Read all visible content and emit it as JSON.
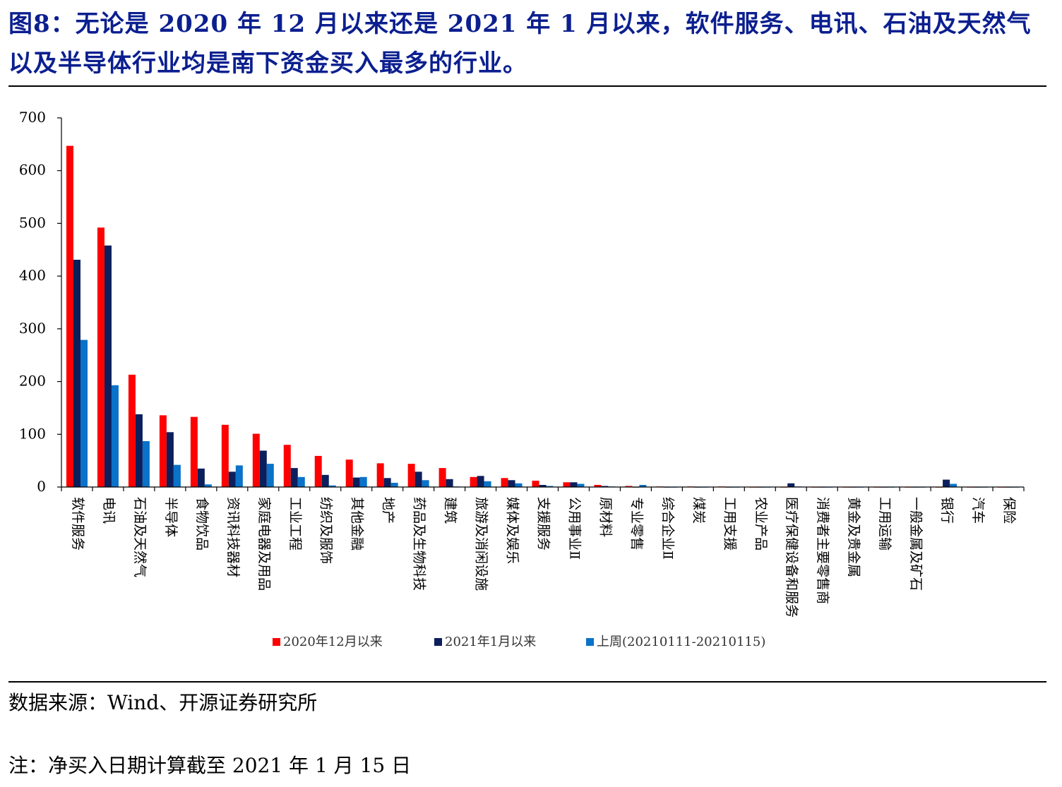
{
  "title": "图8：无论是 2020 年 12 月以来还是 2021 年 1 月以来，软件服务、电讯、石油及天然气以及半导体行业均是南下资金买入最多的行业。",
  "source": "数据来源：Wind、开源证券研究所",
  "note": "注：净买入日期计算截至 2021 年 1 月 15 日",
  "chart_data": {
    "type": "bar",
    "ylim": [
      0,
      700
    ],
    "yticks": [
      0,
      100,
      200,
      300,
      400,
      500,
      600,
      700
    ],
    "grid": false,
    "legend_position": "bottom",
    "categories": [
      "软件服务",
      "电讯",
      "石油及天然气",
      "半导体",
      "食物饮品",
      "资讯科技器材",
      "家庭电器及用品",
      "工业工程",
      "纺织及服饰",
      "其他金融",
      "地产",
      "药品及生物科技",
      "建筑",
      "旅游及消闲设施",
      "媒体及娱乐",
      "支援服务",
      "公用事业Ⅱ",
      "原材料",
      "专业零售",
      "综合企业Ⅱ",
      "煤炭",
      "工用支援",
      "农业产品",
      "医疗保健设备和服务",
      "消费者主要零售商",
      "黄金及贵金属",
      "工用运输",
      "一般金属及矿石",
      "银行",
      "汽车",
      "保险"
    ],
    "series": [
      {
        "name": "2020年12月以来",
        "color": "#ff0000",
        "values": [
          647,
          492,
          213,
          136,
          133,
          118,
          101,
          80,
          59,
          52,
          45,
          44,
          36,
          19,
          17,
          12,
          9,
          4,
          2,
          1,
          1,
          1,
          -1,
          -1,
          -1,
          -1,
          -1,
          -1,
          -1,
          -1,
          -1
        ]
      },
      {
        "name": "2021年1月以来",
        "color": "#0b1f5c",
        "values": [
          431,
          458,
          138,
          104,
          35,
          29,
          69,
          36,
          23,
          18,
          17,
          29,
          15,
          21,
          13,
          4,
          9,
          2,
          -1,
          -1,
          -1,
          -1,
          -1,
          7,
          -1,
          -1,
          -1,
          -1,
          14,
          -1,
          -1
        ]
      },
      {
        "name": "上周(20210111-20210115)",
        "color": "#0a72c8",
        "values": [
          279,
          193,
          87,
          42,
          5,
          41,
          44,
          19,
          3,
          19,
          8,
          13,
          1,
          11,
          7,
          2,
          6,
          1,
          4,
          -1,
          -1,
          -1,
          -1,
          1,
          -1,
          -1,
          -1,
          -1,
          6,
          -1,
          -1
        ]
      }
    ]
  }
}
